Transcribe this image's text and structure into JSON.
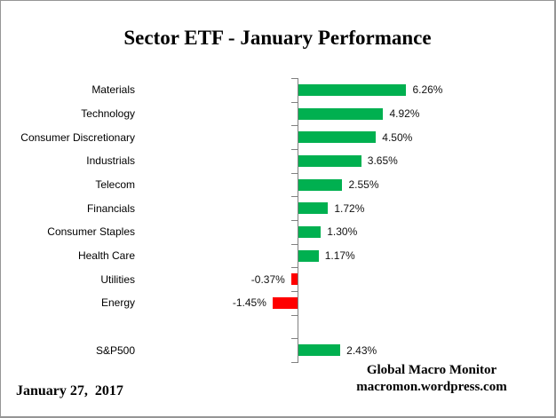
{
  "title": "Sector ETF - January Performance",
  "footer": {
    "date": "January 27,  2017",
    "brand_name": "Global Macro Monitor",
    "brand_url": "macromon.wordpress.com"
  },
  "colors": {
    "positive_bar": "#00B050",
    "negative_bar": "#FF0000",
    "axis": "#808080",
    "frame_border": "#969696",
    "text": "#000000"
  },
  "chart_data": {
    "type": "bar",
    "orientation": "horizontal",
    "title": "Sector ETF - January Performance",
    "categories": [
      "Materials",
      "Technology",
      "Consumer Discretionary",
      "Industrials",
      "Telecom",
      "Financials",
      "Consumer Staples",
      "Health Care",
      "Utilities",
      "Energy",
      "",
      "S&P500"
    ],
    "values": [
      6.26,
      4.92,
      4.5,
      3.65,
      2.55,
      1.72,
      1.3,
      1.17,
      -0.37,
      -1.45,
      null,
      2.43
    ],
    "data_labels": [
      "6.26%",
      "4.92%",
      "4.50%",
      "3.65%",
      "2.55%",
      "1.72%",
      "1.30%",
      "1.17%",
      "-0.37%",
      "-1.45%",
      "",
      "2.43%"
    ],
    "xlabel": "",
    "ylabel": "",
    "unit": "%",
    "xlim": [
      -2,
      15
    ],
    "grid": false,
    "legend": "none",
    "value_axis_visible": false,
    "positive_color": "#00B050",
    "negative_color": "#FF0000"
  }
}
